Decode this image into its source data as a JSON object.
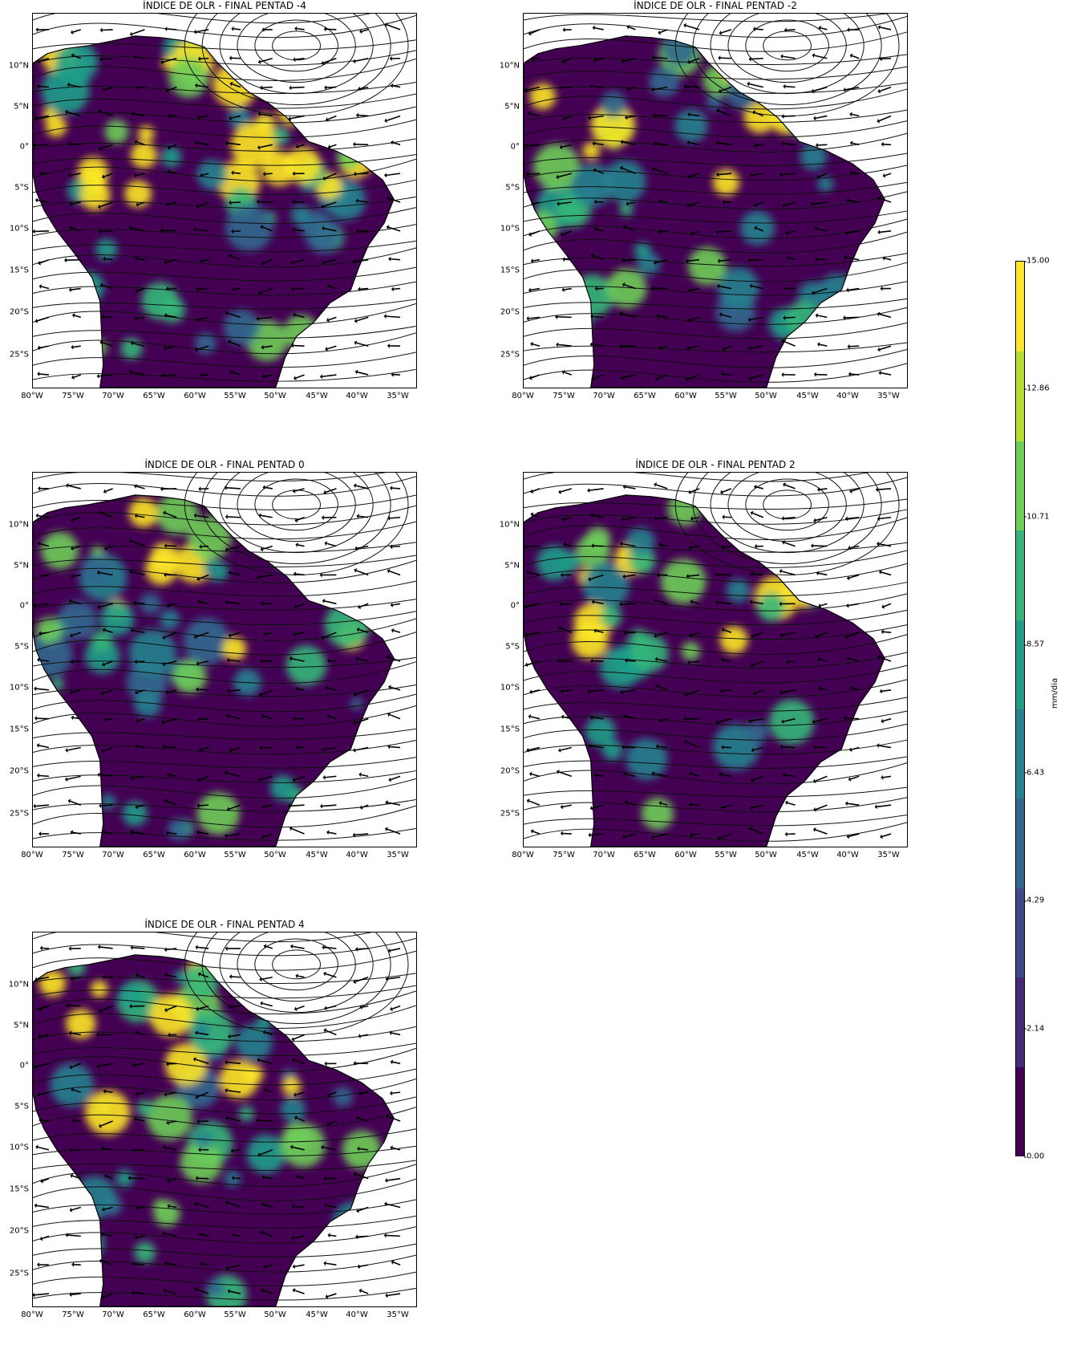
{
  "panels": [
    {
      "title": "ÍNDICE DE OLR - FINAL PENTAD -4",
      "intensity": "high"
    },
    {
      "title": "ÍNDICE DE OLR - FINAL PENTAD -2",
      "intensity": "medium"
    },
    {
      "title": "ÍNDICE DE OLR - FINAL PENTAD 0",
      "intensity": "medium"
    },
    {
      "title": "ÍNDICE DE OLR - FINAL PENTAD 2",
      "intensity": "low"
    },
    {
      "title": "ÍNDICE DE OLR - FINAL PENTAD 4",
      "intensity": "medium"
    }
  ],
  "lat_ticks": [
    "10°N",
    "5°N",
    "0°",
    "5°S",
    "10°S",
    "15°S",
    "20°S",
    "25°S"
  ],
  "lon_ticks": [
    "80°W",
    "75°W",
    "70°W",
    "65°W",
    "60°W",
    "55°W",
    "50°W",
    "45°W",
    "40°W",
    "35°W"
  ],
  "colorbar": {
    "unit": "mm/dia",
    "ticks": [
      "15.00",
      "12.86",
      "10.71",
      "8.57",
      "6.43",
      "4.29",
      "2.14",
      "0.00"
    ],
    "range": [
      0,
      15
    ],
    "colors": [
      "#440154",
      "#482878",
      "#3e4989",
      "#31688e",
      "#26828e",
      "#1f9e89",
      "#35b779",
      "#6ece58",
      "#b5de2b",
      "#fde725"
    ]
  }
}
